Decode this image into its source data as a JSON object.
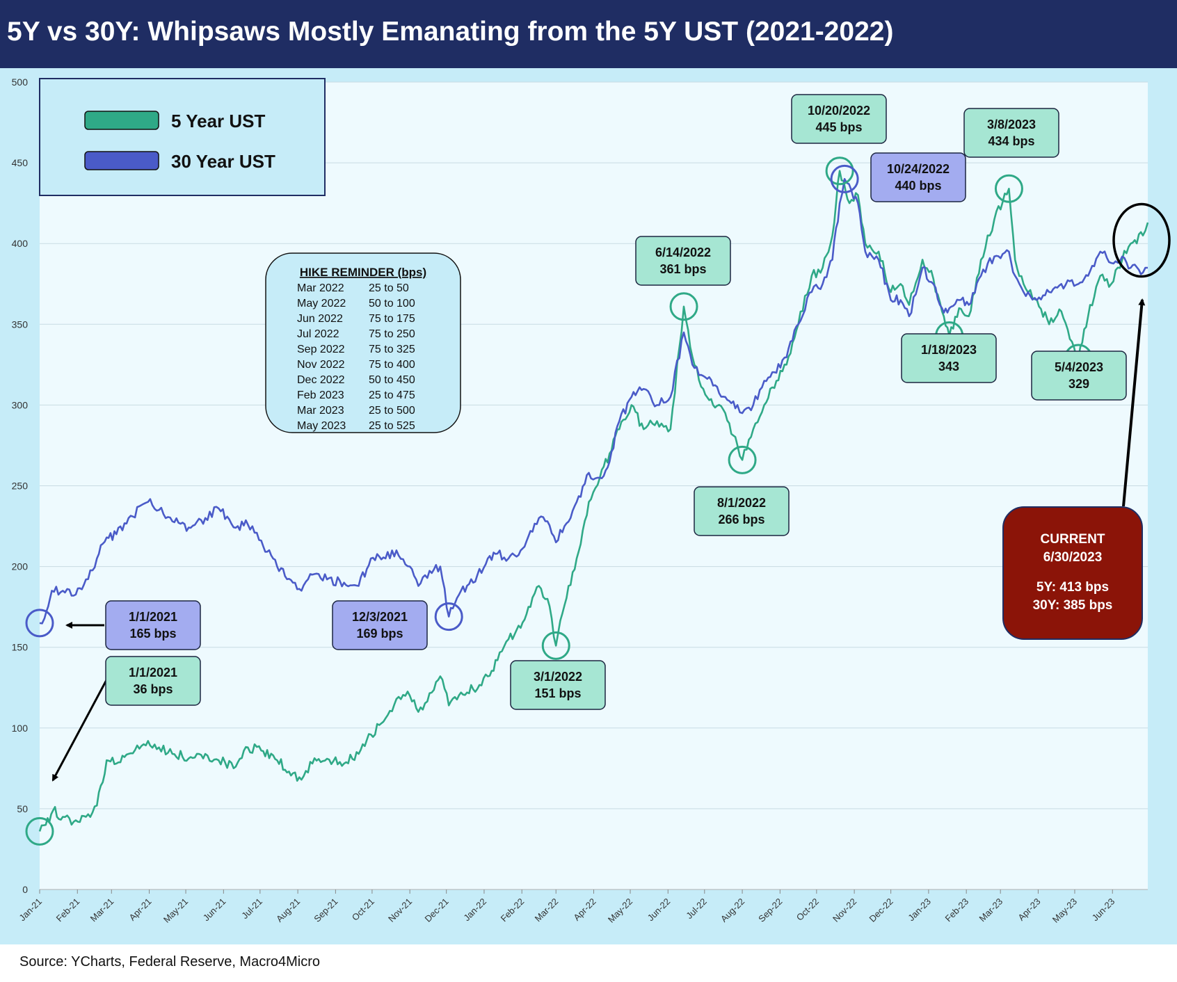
{
  "title": "5Y vs 30Y: Whipsaws Mostly Emanating from the 5Y UST (2021-2022)",
  "source": "Source: YCharts, Federal Reserve, Macro4Micro",
  "colors": {
    "title_bg": "#1f2d63",
    "chart_bg": "#c6ecf8",
    "plot_bg": "#eefafe",
    "five_year": "#2fa987",
    "thirty_year": "#4a5bc8",
    "green_box": "#a6e6d3",
    "blue_box": "#a3acf0",
    "current_box": "#8b1408"
  },
  "chart_data": {
    "type": "line",
    "title": "5Y vs 30Y: Whipsaws Mostly Emanating from the 5Y UST (2021-2022)",
    "xlabel": "",
    "ylabel": "",
    "ylim": [
      0,
      500
    ],
    "yticks": [
      "0",
      "50",
      "100",
      "150",
      "200",
      "250",
      "300",
      "350",
      "400",
      "450",
      "500"
    ],
    "xlim": [
      "2021-01-01",
      "2023-06-30"
    ],
    "xtick_labels": [
      "Jan-21",
      "Feb-21",
      "Mar-21",
      "Apr-21",
      "May-21",
      "Jun-21",
      "Jul-21",
      "Aug-21",
      "Sep-21",
      "Oct-21",
      "Nov-21",
      "Dec-21",
      "Jan-22",
      "Feb-22",
      "Mar-22",
      "Apr-22",
      "May-22",
      "Jun-22",
      "Jul-22",
      "Aug-22",
      "Sep-22",
      "Oct-22",
      "Nov-22",
      "Dec-22",
      "Jan-23",
      "Feb-23",
      "Mar-23",
      "Apr-23",
      "May-23",
      "Jun-23"
    ],
    "grid": true,
    "legend_position": "top-left",
    "series": [
      {
        "name": "5 Year UST",
        "points": [
          [
            "2021-01-01",
            36
          ],
          [
            "2021-01-06",
            40
          ],
          [
            "2021-01-12",
            49
          ],
          [
            "2021-01-20",
            45
          ],
          [
            "2021-01-29",
            42
          ],
          [
            "2021-02-08",
            45
          ],
          [
            "2021-02-17",
            52
          ],
          [
            "2021-02-25",
            80
          ],
          [
            "2021-03-05",
            78
          ],
          [
            "2021-03-15",
            84
          ],
          [
            "2021-03-31",
            92
          ],
          [
            "2021-04-09",
            88
          ],
          [
            "2021-04-20",
            84
          ],
          [
            "2021-05-05",
            82
          ],
          [
            "2021-05-17",
            84
          ],
          [
            "2021-05-28",
            80
          ],
          [
            "2021-06-11",
            76
          ],
          [
            "2021-06-21",
            88
          ],
          [
            "2021-07-02",
            86
          ],
          [
            "2021-07-15",
            80
          ],
          [
            "2021-07-28",
            72
          ],
          [
            "2021-08-04",
            68
          ],
          [
            "2021-08-13",
            78
          ],
          [
            "2021-08-25",
            81
          ],
          [
            "2021-09-08",
            78
          ],
          [
            "2021-09-20",
            84
          ],
          [
            "2021-09-30",
            96
          ],
          [
            "2021-10-12",
            106
          ],
          [
            "2021-10-21",
            118
          ],
          [
            "2021-11-01",
            120
          ],
          [
            "2021-11-08",
            110
          ],
          [
            "2021-11-19",
            122
          ],
          [
            "2021-11-26",
            132
          ],
          [
            "2021-12-03",
            114
          ],
          [
            "2021-12-13",
            122
          ],
          [
            "2021-12-23",
            124
          ],
          [
            "2022-01-04",
            132
          ],
          [
            "2022-01-12",
            142
          ],
          [
            "2022-01-21",
            155
          ],
          [
            "2022-01-31",
            162
          ],
          [
            "2022-02-08",
            175
          ],
          [
            "2022-02-15",
            188
          ],
          [
            "2022-02-22",
            180
          ],
          [
            "2022-03-01",
            151
          ],
          [
            "2022-03-08",
            176
          ],
          [
            "2022-03-18",
            205
          ],
          [
            "2022-03-28",
            240
          ],
          [
            "2022-04-06",
            255
          ],
          [
            "2022-04-14",
            270
          ],
          [
            "2022-04-22",
            285
          ],
          [
            "2022-05-02",
            300
          ],
          [
            "2022-05-12",
            285
          ],
          [
            "2022-05-23",
            290
          ],
          [
            "2022-06-03",
            285
          ],
          [
            "2022-06-14",
            361
          ],
          [
            "2022-06-21",
            330
          ],
          [
            "2022-06-30",
            310
          ],
          [
            "2022-07-08",
            300
          ],
          [
            "2022-07-18",
            295
          ],
          [
            "2022-07-28",
            275
          ],
          [
            "2022-08-01",
            266
          ],
          [
            "2022-08-10",
            285
          ],
          [
            "2022-08-19",
            300
          ],
          [
            "2022-08-29",
            315
          ],
          [
            "2022-09-08",
            330
          ],
          [
            "2022-09-16",
            350
          ],
          [
            "2022-09-27",
            380
          ],
          [
            "2022-10-06",
            385
          ],
          [
            "2022-10-14",
            405
          ],
          [
            "2022-10-20",
            445
          ],
          [
            "2022-10-28",
            425
          ],
          [
            "2022-11-04",
            430
          ],
          [
            "2022-11-10",
            400
          ],
          [
            "2022-11-21",
            395
          ],
          [
            "2022-12-01",
            370
          ],
          [
            "2022-12-09",
            375
          ],
          [
            "2022-12-16",
            362
          ],
          [
            "2022-12-27",
            390
          ],
          [
            "2023-01-05",
            378
          ],
          [
            "2023-01-12",
            358
          ],
          [
            "2023-01-18",
            343
          ],
          [
            "2023-01-26",
            360
          ],
          [
            "2023-02-03",
            355
          ],
          [
            "2023-02-13",
            390
          ],
          [
            "2023-02-24",
            415
          ],
          [
            "2023-03-08",
            434
          ],
          [
            "2023-03-13",
            390
          ],
          [
            "2023-03-20",
            375
          ],
          [
            "2023-03-31",
            365
          ],
          [
            "2023-04-10",
            350
          ],
          [
            "2023-04-20",
            358
          ],
          [
            "2023-05-04",
            329
          ],
          [
            "2023-05-12",
            355
          ],
          [
            "2023-05-22",
            380
          ],
          [
            "2023-05-31",
            375
          ],
          [
            "2023-06-09",
            390
          ],
          [
            "2023-06-16",
            400
          ],
          [
            "2023-06-26",
            405
          ],
          [
            "2023-06-30",
            413
          ]
        ]
      },
      {
        "name": "30 Year UST",
        "points": [
          [
            "2021-01-01",
            165
          ],
          [
            "2021-01-05",
            168
          ],
          [
            "2021-01-11",
            185
          ],
          [
            "2021-01-20",
            185
          ],
          [
            "2021-01-29",
            182
          ],
          [
            "2021-02-08",
            192
          ],
          [
            "2021-02-17",
            205
          ],
          [
            "2021-02-25",
            218
          ],
          [
            "2021-03-05",
            220
          ],
          [
            "2021-03-15",
            230
          ],
          [
            "2021-03-31",
            240
          ],
          [
            "2021-04-09",
            235
          ],
          [
            "2021-04-20",
            228
          ],
          [
            "2021-05-05",
            224
          ],
          [
            "2021-05-17",
            230
          ],
          [
            "2021-05-28",
            236
          ],
          [
            "2021-06-11",
            224
          ],
          [
            "2021-06-21",
            226
          ],
          [
            "2021-07-02",
            216
          ],
          [
            "2021-07-15",
            200
          ],
          [
            "2021-07-28",
            190
          ],
          [
            "2021-08-04",
            185
          ],
          [
            "2021-08-13",
            195
          ],
          [
            "2021-08-25",
            192
          ],
          [
            "2021-09-08",
            190
          ],
          [
            "2021-09-20",
            188
          ],
          [
            "2021-09-30",
            205
          ],
          [
            "2021-10-12",
            205
          ],
          [
            "2021-10-21",
            210
          ],
          [
            "2021-11-01",
            200
          ],
          [
            "2021-11-08",
            188
          ],
          [
            "2021-11-19",
            196
          ],
          [
            "2021-11-26",
            200
          ],
          [
            "2021-12-03",
            169
          ],
          [
            "2021-12-13",
            185
          ],
          [
            "2021-12-23",
            190
          ],
          [
            "2022-01-04",
            205
          ],
          [
            "2022-01-12",
            208
          ],
          [
            "2022-01-21",
            205
          ],
          [
            "2022-01-31",
            210
          ],
          [
            "2022-02-08",
            222
          ],
          [
            "2022-02-15",
            230
          ],
          [
            "2022-02-22",
            228
          ],
          [
            "2022-03-01",
            215
          ],
          [
            "2022-03-08",
            225
          ],
          [
            "2022-03-18",
            240
          ],
          [
            "2022-03-28",
            258
          ],
          [
            "2022-04-06",
            255
          ],
          [
            "2022-04-14",
            265
          ],
          [
            "2022-04-22",
            290
          ],
          [
            "2022-05-02",
            305
          ],
          [
            "2022-05-12",
            310
          ],
          [
            "2022-05-23",
            300
          ],
          [
            "2022-06-03",
            305
          ],
          [
            "2022-06-14",
            345
          ],
          [
            "2022-06-21",
            325
          ],
          [
            "2022-06-30",
            318
          ],
          [
            "2022-07-08",
            312
          ],
          [
            "2022-07-18",
            305
          ],
          [
            "2022-07-28",
            300
          ],
          [
            "2022-08-01",
            295
          ],
          [
            "2022-08-10",
            300
          ],
          [
            "2022-08-19",
            315
          ],
          [
            "2022-08-29",
            320
          ],
          [
            "2022-09-08",
            335
          ],
          [
            "2022-09-16",
            350
          ],
          [
            "2022-09-27",
            370
          ],
          [
            "2022-10-06",
            375
          ],
          [
            "2022-10-14",
            390
          ],
          [
            "2022-10-20",
            425
          ],
          [
            "2022-10-24",
            440
          ],
          [
            "2022-11-04",
            425
          ],
          [
            "2022-11-10",
            395
          ],
          [
            "2022-11-21",
            390
          ],
          [
            "2022-12-01",
            365
          ],
          [
            "2022-12-09",
            365
          ],
          [
            "2022-12-16",
            355
          ],
          [
            "2022-12-27",
            385
          ],
          [
            "2023-01-05",
            375
          ],
          [
            "2023-01-12",
            360
          ],
          [
            "2023-01-18",
            360
          ],
          [
            "2023-01-26",
            365
          ],
          [
            "2023-02-03",
            362
          ],
          [
            "2023-02-13",
            380
          ],
          [
            "2023-02-24",
            392
          ],
          [
            "2023-03-08",
            395
          ],
          [
            "2023-03-13",
            380
          ],
          [
            "2023-03-20",
            370
          ],
          [
            "2023-03-31",
            365
          ],
          [
            "2023-04-10",
            370
          ],
          [
            "2023-04-20",
            375
          ],
          [
            "2023-05-04",
            375
          ],
          [
            "2023-05-12",
            380
          ],
          [
            "2023-05-22",
            395
          ],
          [
            "2023-05-31",
            388
          ],
          [
            "2023-06-09",
            392
          ],
          [
            "2023-06-16",
            385
          ],
          [
            "2023-06-26",
            382
          ],
          [
            "2023-06-30",
            385
          ]
        ]
      }
    ],
    "legend": [
      "5 Year UST",
      "30 Year UST"
    ],
    "annotations": [
      {
        "date": "2021-01-01",
        "series": "30 Year UST",
        "line1": "1/1/2021",
        "line2": "165 bps",
        "color": "blue"
      },
      {
        "date": "2021-01-01",
        "series": "5 Year UST",
        "line1": "1/1/2021",
        "line2": "36 bps",
        "color": "green"
      },
      {
        "date": "2021-12-03",
        "series": "30 Year UST",
        "line1": "12/3/2021",
        "line2": "169 bps",
        "color": "blue"
      },
      {
        "date": "2022-03-01",
        "series": "5 Year UST",
        "line1": "3/1/2022",
        "line2": "151 bps",
        "color": "green"
      },
      {
        "date": "2022-06-14",
        "series": "5 Year UST",
        "line1": "6/14/2022",
        "line2": "361 bps",
        "color": "green"
      },
      {
        "date": "2022-08-01",
        "series": "5 Year UST",
        "line1": "8/1/2022",
        "line2": "266 bps",
        "color": "green"
      },
      {
        "date": "2022-10-20",
        "series": "5 Year UST",
        "line1": "10/20/2022",
        "line2": "445 bps",
        "color": "green"
      },
      {
        "date": "2022-10-24",
        "series": "30 Year UST",
        "line1": "10/24/2022",
        "line2": "440 bps",
        "color": "blue"
      },
      {
        "date": "2023-01-18",
        "series": "5 Year UST",
        "line1": "1/18/2023",
        "line2": "343",
        "color": "green"
      },
      {
        "date": "2023-03-08",
        "series": "5 Year UST",
        "line1": "3/8/2023",
        "line2": "434 bps",
        "color": "green"
      },
      {
        "date": "2023-05-04",
        "series": "5 Year UST",
        "line1": "5/4/2023",
        "line2": "329",
        "color": "green"
      }
    ],
    "hike_reminder": {
      "title": "HIKE REMINDER (bps)",
      "rows": [
        [
          "Mar 2022",
          "25 to 50"
        ],
        [
          "May 2022",
          "50 to 100"
        ],
        [
          "Jun 2022",
          "75 to 175"
        ],
        [
          "Jul 2022",
          "75 to 250"
        ],
        [
          "Sep 2022",
          "75 to 325"
        ],
        [
          "Nov 2022",
          "75 to 400"
        ],
        [
          "Dec 2022",
          "50 to 450"
        ],
        [
          "Feb 2023",
          "25 to 475"
        ],
        [
          "Mar 2023",
          "25 to 500"
        ],
        [
          "May 2023",
          "25 to 525"
        ]
      ]
    },
    "current": {
      "label": "CURRENT",
      "date": "6/30/2023",
      "five_year": "5Y: 413 bps",
      "thirty_year": "30Y: 385 bps"
    }
  }
}
